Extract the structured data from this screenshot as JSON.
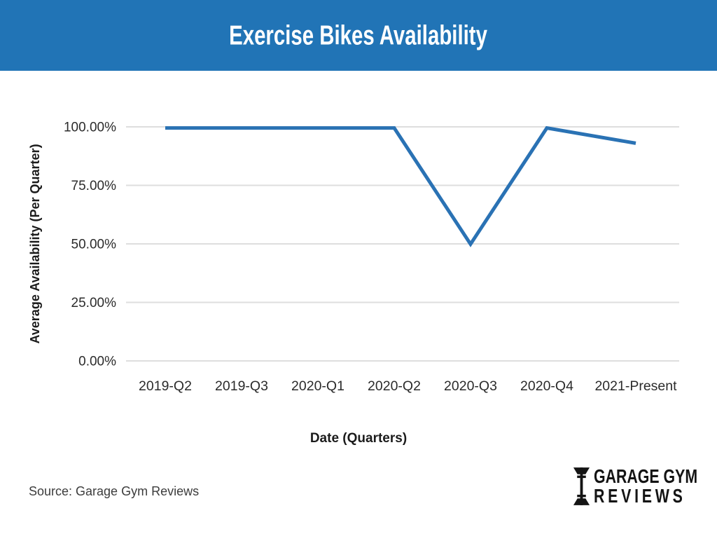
{
  "header": {
    "title": "Exercise Bikes Availability"
  },
  "chart_data": {
    "type": "line",
    "title": "Exercise Bikes Availability",
    "categories": [
      "2019-Q2",
      "2019-Q3",
      "2020-Q1",
      "2020-Q2",
      "2020-Q3",
      "2020-Q4",
      "2021-Present"
    ],
    "values": [
      99.5,
      99.5,
      99.5,
      99.5,
      49.9,
      99.5,
      93
    ],
    "xlabel": "Date (Quarters)",
    "ylabel": "Average Availability (Per Quarter)",
    "yticks": [
      0,
      25,
      50,
      75,
      100
    ],
    "ytick_labels": [
      "0.00%",
      "25.00%",
      "50.00%",
      "75.00%",
      "100.00%"
    ],
    "ylim": [
      0,
      100
    ],
    "grid": "horizontal",
    "legend": "none",
    "markers": "none",
    "line_color": "#2a72b4"
  },
  "source": {
    "text": "Source: Garage Gym Reviews"
  },
  "logo": {
    "icon": "dumbbell-icon",
    "line1": "GARAGE GYM",
    "line2": "REVIEWS"
  },
  "colors": {
    "header_bg": "#2174b6",
    "header_text": "#ffffff",
    "grid": "#dedede",
    "axis_text": "#2b2b2b",
    "axis_title_text": "#1b1b1b",
    "line": "#2a72b4"
  }
}
